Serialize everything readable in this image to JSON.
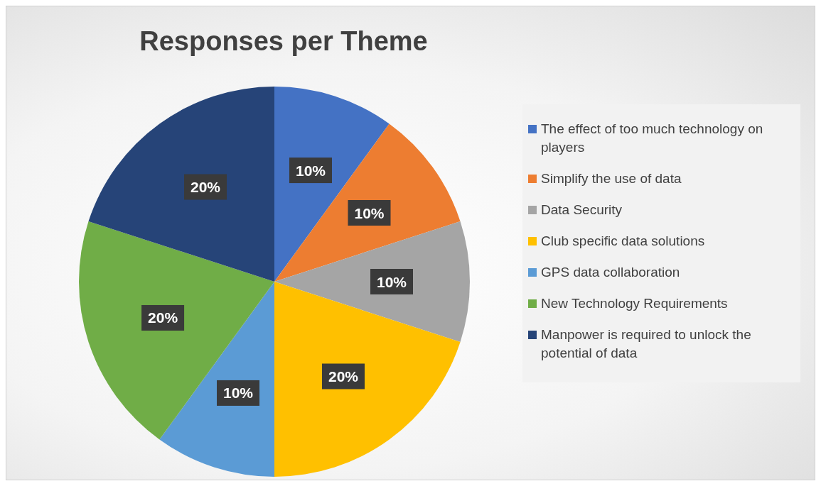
{
  "chart_data": {
    "type": "pie",
    "title": "Responses per Theme",
    "categories": [
      "The effect of too much technology on players",
      "Simplify the use of data",
      "Data Security",
      "Club specific data solutions",
      "GPS data collaboration",
      "New Technology Requirements",
      "Manpower is required to unlock the potential of data"
    ],
    "values": [
      10,
      10,
      10,
      20,
      10,
      20,
      20
    ],
    "value_labels": [
      "10%",
      "10%",
      "10%",
      "20%",
      "10%",
      "20%",
      "20%"
    ],
    "colors": [
      "#4472c4",
      "#ed7d31",
      "#a5a5a5",
      "#ffc000",
      "#5b9bd5",
      "#70ad47",
      "#264478"
    ],
    "legend": "right"
  }
}
